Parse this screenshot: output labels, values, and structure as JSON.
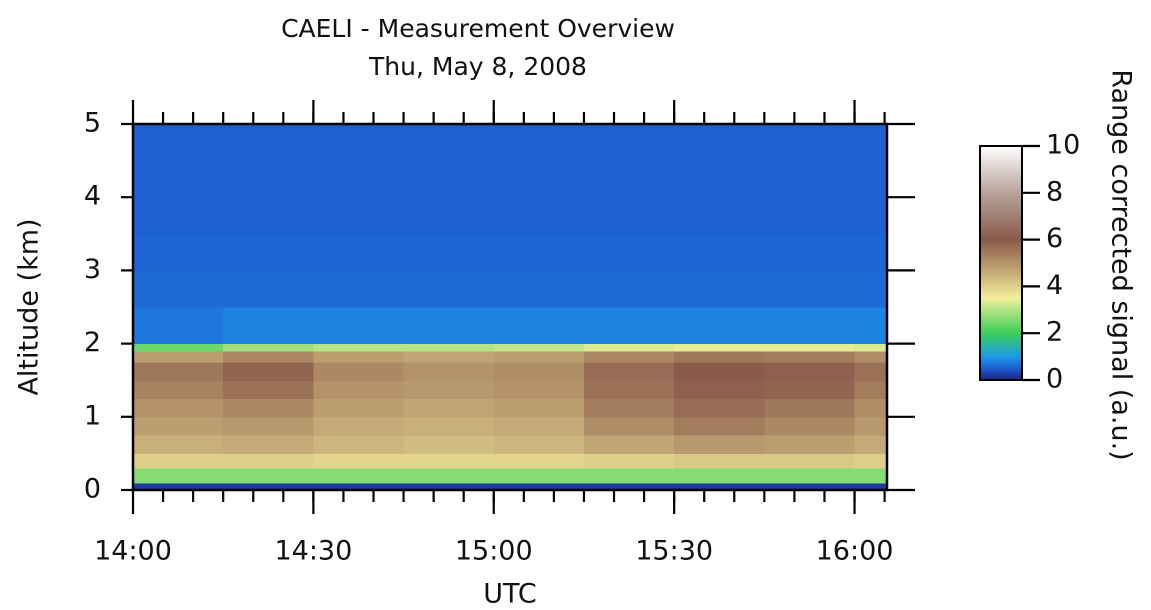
{
  "chart_data": {
    "type": "heatmap",
    "title": "CAELI - Measurement Overview",
    "subtitle": "Thu, May 8, 2008",
    "x_label": "UTC",
    "y_label": "Altitude (km)",
    "colorbar_label": "Range corrected signal (a.u.)",
    "xlim": [
      14,
      16.09
    ],
    "ylim": [
      0,
      5
    ],
    "zlim": [
      0,
      10
    ],
    "xticks": [
      {
        "value": 14,
        "label": "14:00"
      },
      {
        "value": 14.5,
        "label": "14:30"
      },
      {
        "value": 15,
        "label": "15:00"
      },
      {
        "value": 15.5,
        "label": "15:30"
      },
      {
        "value": 16,
        "label": "16:00"
      }
    ],
    "yticks": [
      0,
      1,
      2,
      3,
      4,
      5
    ],
    "zticks": [
      0,
      2,
      4,
      6,
      8,
      10
    ],
    "xbins": [
      14,
      14.25,
      14.5,
      14.75,
      15,
      15.25,
      15.5,
      15.75,
      16,
      16.09
    ],
    "ybins": [
      0,
      0.1,
      0.3,
      0.5,
      0.75,
      1,
      1.25,
      1.5,
      1.75,
      1.9,
      2,
      2.5,
      3,
      3.5,
      4,
      4.5,
      5
    ],
    "colorscale": [
      [
        0,
        "#1a237e"
      ],
      [
        0.5,
        "#1e5fd2"
      ],
      [
        1,
        "#1e9ae8"
      ],
      [
        2,
        "#3ccf5a"
      ],
      [
        3.5,
        "#f2ef9a"
      ],
      [
        4.5,
        "#c9b07a"
      ],
      [
        6,
        "#8a5a4a"
      ],
      [
        8,
        "#b8a39b"
      ],
      [
        10,
        "#ffffff"
      ]
    ],
    "z": [
      [
        0.2,
        0.2,
        0.2,
        0.2,
        0.2,
        0.2,
        0.2,
        0.2,
        0.2
      ],
      [
        2.6,
        2.6,
        2.6,
        2.6,
        2.6,
        2.6,
        2.6,
        2.6,
        2.6
      ],
      [
        4.0,
        4.0,
        3.9,
        3.9,
        3.9,
        4.0,
        4.1,
        4.1,
        4.0
      ],
      [
        4.5,
        4.6,
        4.4,
        4.3,
        4.4,
        4.7,
        4.9,
        4.8,
        4.6
      ],
      [
        4.8,
        4.9,
        4.6,
        4.5,
        4.6,
        5.1,
        5.4,
        5.2,
        4.9
      ],
      [
        5.0,
        5.2,
        4.8,
        4.7,
        4.8,
        5.4,
        5.7,
        5.5,
        5.1
      ],
      [
        5.3,
        5.6,
        5.0,
        4.9,
        5.0,
        5.6,
        5.9,
        5.8,
        5.4
      ],
      [
        5.5,
        5.8,
        5.2,
        5.0,
        5.1,
        5.7,
        6.0,
        5.9,
        5.6
      ],
      [
        4.8,
        5.2,
        4.8,
        4.7,
        4.8,
        5.2,
        5.5,
        5.4,
        5.1
      ],
      [
        2.4,
        2.8,
        3.0,
        3.0,
        3.1,
        3.3,
        3.4,
        3.4,
        3.3
      ],
      [
        0.7,
        0.8,
        0.8,
        0.8,
        0.8,
        0.8,
        0.8,
        0.8,
        0.8
      ],
      [
        0.6,
        0.6,
        0.6,
        0.6,
        0.6,
        0.6,
        0.6,
        0.6,
        0.6
      ],
      [
        0.55,
        0.55,
        0.55,
        0.55,
        0.55,
        0.55,
        0.55,
        0.55,
        0.55
      ],
      [
        0.5,
        0.5,
        0.5,
        0.5,
        0.5,
        0.5,
        0.5,
        0.5,
        0.5
      ],
      [
        0.5,
        0.5,
        0.5,
        0.5,
        0.5,
        0.5,
        0.5,
        0.5,
        0.5
      ],
      [
        0.5,
        0.5,
        0.5,
        0.5,
        0.5,
        0.5,
        0.5,
        0.5,
        0.5
      ]
    ]
  }
}
